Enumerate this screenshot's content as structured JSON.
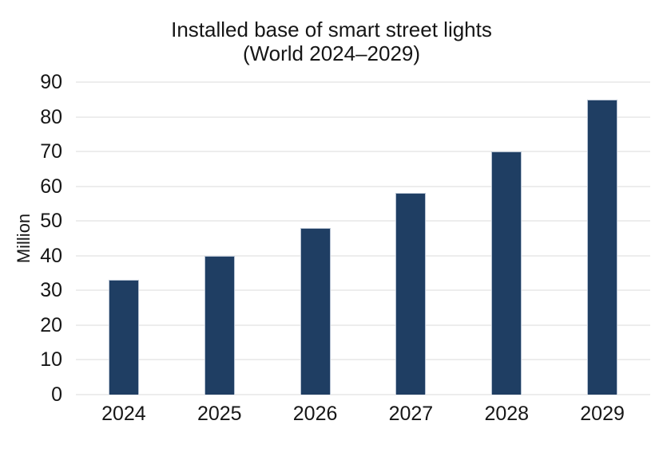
{
  "title": {
    "line1": "Installed base of smart street lights",
    "line2": "(World 2024–2029)"
  },
  "chart_data": {
    "type": "bar",
    "categories": [
      "2024",
      "2025",
      "2026",
      "2027",
      "2028",
      "2029"
    ],
    "values": [
      33,
      40,
      48,
      58,
      70,
      85
    ],
    "title": "Installed base of smart street lights (World 2024–2029)",
    "xlabel": "",
    "ylabel": "Million",
    "ylim": [
      0,
      90
    ],
    "yticks": [
      0,
      10,
      20,
      30,
      40,
      50,
      60,
      70,
      80,
      90
    ],
    "grid": true,
    "legend": "none",
    "bar_color": "#1f3e63",
    "bar_edge_color": "#b7c3d3",
    "grid_color": "#ededed",
    "text_color": "#161616",
    "background": "#ffffff"
  }
}
